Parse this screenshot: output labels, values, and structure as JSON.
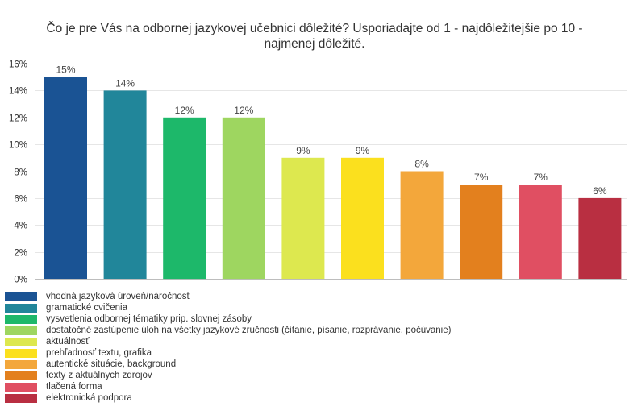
{
  "chart_data": {
    "type": "bar",
    "title_lines": [
      "Čo je pre Vás na odbornej jazykovej učebnici dôležité? Usporiadajte od 1 - najdôležitejšie po 10 -",
      "najmenej dôležité."
    ],
    "ylim": [
      0,
      16
    ],
    "yticks": [
      0,
      2,
      4,
      6,
      8,
      10,
      12,
      14,
      16
    ],
    "ytick_suffix": "%",
    "grid": true,
    "legend_position": "bottom-left",
    "categories": [
      "vhodná jazyková úroveň/náročnosť",
      "gramatické cvičenia",
      "vysvetlenia odbornej tématiky prip. slovnej zásoby",
      "dostatočné zastúpenie úloh na všetky jazykové zručnosti (čítanie, písanie, rozprávanie, počúvanie)",
      "aktuálnosť",
      "prehľadnosť textu, grafika",
      "autentické situácie, background",
      "texty z aktuálnych zdrojov",
      "tlačená forma",
      "elektronická podpora"
    ],
    "values": [
      15,
      14,
      12,
      12,
      9,
      9,
      8,
      7,
      7,
      6
    ],
    "data_labels": [
      "15%",
      "14%",
      "12%",
      "12%",
      "9%",
      "9%",
      "8%",
      "7%",
      "7%",
      "6%"
    ],
    "colors": [
      "#1a5394",
      "#21869a",
      "#1db86a",
      "#9ed660",
      "#dde84f",
      "#fbe01e",
      "#f3a73b",
      "#e3801e",
      "#e04f62",
      "#b92f41"
    ]
  }
}
